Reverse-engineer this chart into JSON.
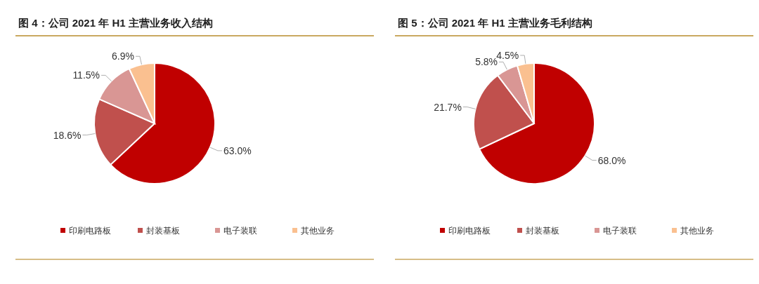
{
  "chart_data": [
    {
      "type": "pie",
      "title": "图 4：公司 2021 年 H1 主营业务收入结构",
      "categories": [
        "印刷电路板",
        "封装基板",
        "电子装联",
        "其他业务"
      ],
      "values": [
        63.0,
        18.6,
        11.5,
        6.9
      ],
      "colors": [
        "#c00000",
        "#c0504d",
        "#d99694",
        "#fac090"
      ],
      "value_labels": [
        "63.0%",
        "18.6%",
        "11.5%",
        "6.9%"
      ],
      "legend": "bottom"
    },
    {
      "type": "pie",
      "title": "图 5：公司 2021 年 H1 主营业务毛利结构",
      "categories": [
        "印刷电路板",
        "封装基板",
        "电子装联",
        "其他业务"
      ],
      "values": [
        68.0,
        21.7,
        5.8,
        4.5
      ],
      "colors": [
        "#c00000",
        "#c0504d",
        "#d99694",
        "#fac090"
      ],
      "value_labels": [
        "68.0%",
        "21.7%",
        "5.8%",
        "4.5%"
      ],
      "legend": "bottom"
    }
  ]
}
